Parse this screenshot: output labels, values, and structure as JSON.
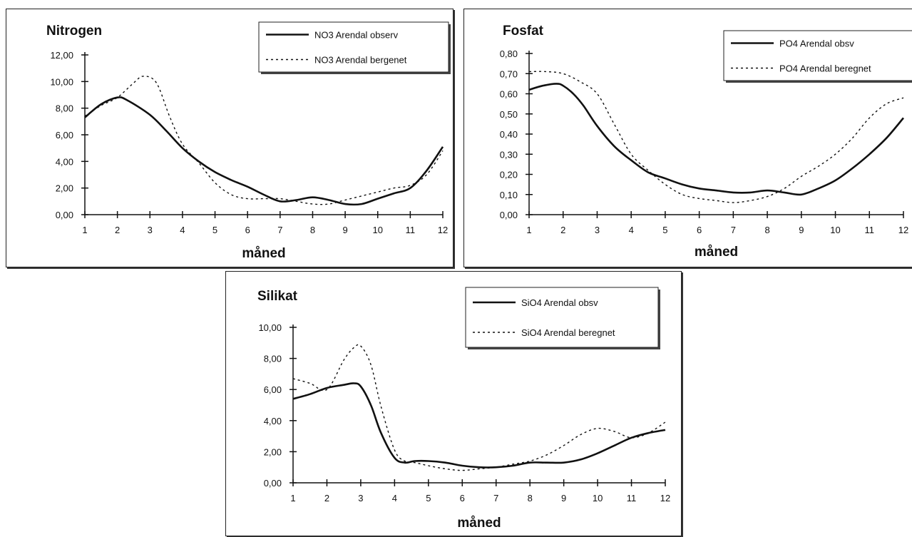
{
  "chart_data": [
    {
      "type": "line",
      "title": "Nitrogen",
      "xlabel": "måned",
      "ylabel": "",
      "x": [
        1,
        2,
        3,
        4,
        5,
        6,
        7,
        8,
        9,
        10,
        11,
        12
      ],
      "xlim": [
        1,
        12
      ],
      "ylim": [
        0,
        12
      ],
      "y_ticks": [
        "0,00",
        "2,00",
        "4,00",
        "6,00",
        "8,00",
        "10,00",
        "12,00"
      ],
      "y_tick_values": [
        0,
        2,
        4,
        6,
        8,
        10,
        12
      ],
      "x_ticks": [
        "1",
        "2",
        "3",
        "4",
        "5",
        "6",
        "7",
        "8",
        "9",
        "10",
        "11",
        "12"
      ],
      "legend_position": "top-right",
      "series": [
        {
          "name": "NO3 Arendal observ",
          "style": "solid",
          "x": [
            1,
            1.5,
            2,
            2.3,
            3,
            3.5,
            4,
            4.5,
            5,
            5.5,
            6,
            6.5,
            7,
            7.5,
            8,
            8.5,
            9,
            9.5,
            10,
            10.5,
            11,
            11.5,
            12
          ],
          "values": [
            7.3,
            8.3,
            8.8,
            8.6,
            7.5,
            6.3,
            5.0,
            4.0,
            3.2,
            2.6,
            2.1,
            1.5,
            1.0,
            1.1,
            1.3,
            1.1,
            0.8,
            0.8,
            1.2,
            1.6,
            2.0,
            3.3,
            5.1
          ]
        },
        {
          "name": "NO3 Arendal bergenet",
          "style": "dotted",
          "x": [
            1,
            1.5,
            2,
            2.5,
            2.8,
            3.2,
            3.6,
            4,
            4.5,
            5,
            5.5,
            6,
            6.5,
            7,
            7.5,
            8,
            8.5,
            9,
            9.5,
            10,
            10.5,
            11,
            11.5,
            12
          ],
          "values": [
            7.4,
            8.2,
            8.8,
            9.9,
            10.4,
            9.9,
            7.4,
            5.3,
            3.9,
            2.4,
            1.5,
            1.2,
            1.2,
            1.2,
            1.0,
            0.8,
            0.8,
            1.1,
            1.4,
            1.7,
            2.0,
            2.2,
            3.0,
            4.8
          ]
        }
      ]
    },
    {
      "type": "line",
      "title": "Fosfat",
      "xlabel": "måned",
      "ylabel": "",
      "x": [
        1,
        2,
        3,
        4,
        5,
        6,
        7,
        8,
        9,
        10,
        11,
        12
      ],
      "xlim": [
        1,
        12
      ],
      "ylim": [
        0,
        0.8
      ],
      "y_ticks": [
        "0,00",
        "0,10",
        "0,20",
        "0,30",
        "0,40",
        "0,50",
        "0,60",
        "0,70",
        "0,80"
      ],
      "y_tick_values": [
        0,
        0.1,
        0.2,
        0.3,
        0.4,
        0.5,
        0.6,
        0.7,
        0.8
      ],
      "x_ticks": [
        "1",
        "2",
        "3",
        "4",
        "5",
        "6",
        "7",
        "8",
        "9",
        "10",
        "11",
        "12"
      ],
      "legend_position": "top-right",
      "series": [
        {
          "name": "PO4 Arendal obsv",
          "style": "solid",
          "x": [
            1,
            1.4,
            1.8,
            2,
            2.3,
            2.6,
            3,
            3.5,
            4,
            4.5,
            5,
            5.5,
            6,
            6.5,
            7,
            7.5,
            8,
            8.5,
            9,
            9.5,
            10,
            10.5,
            11,
            11.5,
            12
          ],
          "values": [
            0.62,
            0.64,
            0.65,
            0.64,
            0.6,
            0.54,
            0.44,
            0.34,
            0.27,
            0.21,
            0.18,
            0.15,
            0.13,
            0.12,
            0.11,
            0.11,
            0.12,
            0.11,
            0.1,
            0.13,
            0.17,
            0.23,
            0.3,
            0.38,
            0.48
          ]
        },
        {
          "name": "PO4 Arendal beregnet",
          "style": "dotted",
          "x": [
            1,
            1.5,
            2,
            2.5,
            3,
            3.5,
            4,
            4.5,
            5,
            5.5,
            6,
            6.5,
            7,
            7.5,
            8,
            8.5,
            9,
            9.5,
            10,
            10.5,
            11,
            11.5,
            12
          ],
          "values": [
            0.71,
            0.71,
            0.7,
            0.66,
            0.6,
            0.45,
            0.3,
            0.22,
            0.15,
            0.1,
            0.08,
            0.07,
            0.06,
            0.07,
            0.09,
            0.13,
            0.19,
            0.24,
            0.3,
            0.38,
            0.48,
            0.55,
            0.58
          ]
        }
      ]
    },
    {
      "type": "line",
      "title": "Silikat",
      "xlabel": "måned",
      "ylabel": "",
      "x": [
        1,
        2,
        3,
        4,
        5,
        6,
        7,
        8,
        9,
        10,
        11,
        12
      ],
      "xlim": [
        1,
        12
      ],
      "ylim": [
        0,
        10
      ],
      "y_ticks": [
        "0,00",
        "2,00",
        "4,00",
        "6,00",
        "8,00",
        "10,00"
      ],
      "y_tick_values": [
        0,
        2,
        4,
        6,
        8,
        10
      ],
      "x_ticks": [
        "1",
        "2",
        "3",
        "4",
        "5",
        "6",
        "7",
        "8",
        "9",
        "10",
        "11",
        "12"
      ],
      "legend_position": "top-right",
      "series": [
        {
          "name": "SiO4 Arendal obsv",
          "style": "solid",
          "x": [
            1,
            1.5,
            2,
            2.5,
            2.8,
            3,
            3.3,
            3.6,
            4,
            4.3,
            4.6,
            5,
            5.5,
            6,
            6.5,
            7,
            7.5,
            8,
            8.5,
            9,
            9.5,
            10,
            10.5,
            11,
            11.5,
            12
          ],
          "values": [
            5.4,
            5.7,
            6.1,
            6.3,
            6.4,
            6.2,
            5.0,
            3.2,
            1.6,
            1.3,
            1.4,
            1.4,
            1.3,
            1.1,
            1.0,
            1.0,
            1.1,
            1.3,
            1.3,
            1.3,
            1.5,
            1.9,
            2.4,
            2.9,
            3.2,
            3.4
          ]
        },
        {
          "name": "SiO4 Arendal beregnet",
          "style": "dotted",
          "x": [
            1,
            1.5,
            2,
            2.5,
            2.8,
            3,
            3.3,
            3.6,
            4,
            4.3,
            4.6,
            5,
            5.5,
            6,
            6.5,
            7,
            7.5,
            8,
            8.5,
            9,
            9.5,
            10,
            10.5,
            11,
            11.5,
            12
          ],
          "values": [
            6.7,
            6.4,
            6.0,
            7.9,
            8.7,
            8.8,
            7.6,
            4.9,
            2.1,
            1.4,
            1.3,
            1.1,
            0.9,
            0.8,
            0.9,
            1.0,
            1.2,
            1.4,
            1.8,
            2.4,
            3.1,
            3.5,
            3.3,
            2.9,
            3.2,
            3.9
          ]
        }
      ]
    }
  ]
}
